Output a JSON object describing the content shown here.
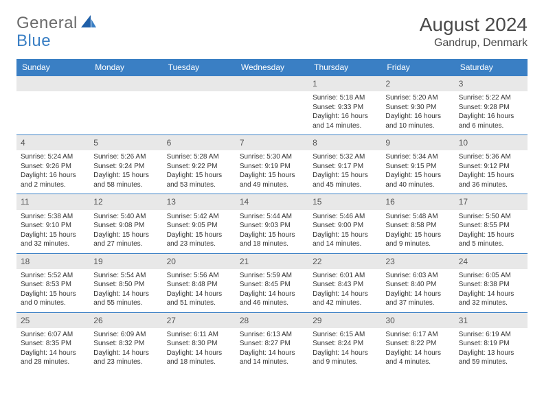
{
  "logo": {
    "part1": "General",
    "part2": "Blue"
  },
  "title": "August 2024",
  "location": "Gandrup, Denmark",
  "colors": {
    "header_bg": "#3a7fc4",
    "header_fg": "#ffffff",
    "daynum_bg": "#e8e8e8",
    "row_border": "#3a7fc4",
    "logo_gray": "#6b6b6b",
    "logo_blue": "#3a7fc4"
  },
  "day_headers": [
    "Sunday",
    "Monday",
    "Tuesday",
    "Wednesday",
    "Thursday",
    "Friday",
    "Saturday"
  ],
  "weeks": [
    [
      {
        "n": "",
        "sunrise": "",
        "sunset": "",
        "daylight": ""
      },
      {
        "n": "",
        "sunrise": "",
        "sunset": "",
        "daylight": ""
      },
      {
        "n": "",
        "sunrise": "",
        "sunset": "",
        "daylight": ""
      },
      {
        "n": "",
        "sunrise": "",
        "sunset": "",
        "daylight": ""
      },
      {
        "n": "1",
        "sunrise": "Sunrise: 5:18 AM",
        "sunset": "Sunset: 9:33 PM",
        "daylight": "Daylight: 16 hours and 14 minutes."
      },
      {
        "n": "2",
        "sunrise": "Sunrise: 5:20 AM",
        "sunset": "Sunset: 9:30 PM",
        "daylight": "Daylight: 16 hours and 10 minutes."
      },
      {
        "n": "3",
        "sunrise": "Sunrise: 5:22 AM",
        "sunset": "Sunset: 9:28 PM",
        "daylight": "Daylight: 16 hours and 6 minutes."
      }
    ],
    [
      {
        "n": "4",
        "sunrise": "Sunrise: 5:24 AM",
        "sunset": "Sunset: 9:26 PM",
        "daylight": "Daylight: 16 hours and 2 minutes."
      },
      {
        "n": "5",
        "sunrise": "Sunrise: 5:26 AM",
        "sunset": "Sunset: 9:24 PM",
        "daylight": "Daylight: 15 hours and 58 minutes."
      },
      {
        "n": "6",
        "sunrise": "Sunrise: 5:28 AM",
        "sunset": "Sunset: 9:22 PM",
        "daylight": "Daylight: 15 hours and 53 minutes."
      },
      {
        "n": "7",
        "sunrise": "Sunrise: 5:30 AM",
        "sunset": "Sunset: 9:19 PM",
        "daylight": "Daylight: 15 hours and 49 minutes."
      },
      {
        "n": "8",
        "sunrise": "Sunrise: 5:32 AM",
        "sunset": "Sunset: 9:17 PM",
        "daylight": "Daylight: 15 hours and 45 minutes."
      },
      {
        "n": "9",
        "sunrise": "Sunrise: 5:34 AM",
        "sunset": "Sunset: 9:15 PM",
        "daylight": "Daylight: 15 hours and 40 minutes."
      },
      {
        "n": "10",
        "sunrise": "Sunrise: 5:36 AM",
        "sunset": "Sunset: 9:12 PM",
        "daylight": "Daylight: 15 hours and 36 minutes."
      }
    ],
    [
      {
        "n": "11",
        "sunrise": "Sunrise: 5:38 AM",
        "sunset": "Sunset: 9:10 PM",
        "daylight": "Daylight: 15 hours and 32 minutes."
      },
      {
        "n": "12",
        "sunrise": "Sunrise: 5:40 AM",
        "sunset": "Sunset: 9:08 PM",
        "daylight": "Daylight: 15 hours and 27 minutes."
      },
      {
        "n": "13",
        "sunrise": "Sunrise: 5:42 AM",
        "sunset": "Sunset: 9:05 PM",
        "daylight": "Daylight: 15 hours and 23 minutes."
      },
      {
        "n": "14",
        "sunrise": "Sunrise: 5:44 AM",
        "sunset": "Sunset: 9:03 PM",
        "daylight": "Daylight: 15 hours and 18 minutes."
      },
      {
        "n": "15",
        "sunrise": "Sunrise: 5:46 AM",
        "sunset": "Sunset: 9:00 PM",
        "daylight": "Daylight: 15 hours and 14 minutes."
      },
      {
        "n": "16",
        "sunrise": "Sunrise: 5:48 AM",
        "sunset": "Sunset: 8:58 PM",
        "daylight": "Daylight: 15 hours and 9 minutes."
      },
      {
        "n": "17",
        "sunrise": "Sunrise: 5:50 AM",
        "sunset": "Sunset: 8:55 PM",
        "daylight": "Daylight: 15 hours and 5 minutes."
      }
    ],
    [
      {
        "n": "18",
        "sunrise": "Sunrise: 5:52 AM",
        "sunset": "Sunset: 8:53 PM",
        "daylight": "Daylight: 15 hours and 0 minutes."
      },
      {
        "n": "19",
        "sunrise": "Sunrise: 5:54 AM",
        "sunset": "Sunset: 8:50 PM",
        "daylight": "Daylight: 14 hours and 55 minutes."
      },
      {
        "n": "20",
        "sunrise": "Sunrise: 5:56 AM",
        "sunset": "Sunset: 8:48 PM",
        "daylight": "Daylight: 14 hours and 51 minutes."
      },
      {
        "n": "21",
        "sunrise": "Sunrise: 5:59 AM",
        "sunset": "Sunset: 8:45 PM",
        "daylight": "Daylight: 14 hours and 46 minutes."
      },
      {
        "n": "22",
        "sunrise": "Sunrise: 6:01 AM",
        "sunset": "Sunset: 8:43 PM",
        "daylight": "Daylight: 14 hours and 42 minutes."
      },
      {
        "n": "23",
        "sunrise": "Sunrise: 6:03 AM",
        "sunset": "Sunset: 8:40 PM",
        "daylight": "Daylight: 14 hours and 37 minutes."
      },
      {
        "n": "24",
        "sunrise": "Sunrise: 6:05 AM",
        "sunset": "Sunset: 8:38 PM",
        "daylight": "Daylight: 14 hours and 32 minutes."
      }
    ],
    [
      {
        "n": "25",
        "sunrise": "Sunrise: 6:07 AM",
        "sunset": "Sunset: 8:35 PM",
        "daylight": "Daylight: 14 hours and 28 minutes."
      },
      {
        "n": "26",
        "sunrise": "Sunrise: 6:09 AM",
        "sunset": "Sunset: 8:32 PM",
        "daylight": "Daylight: 14 hours and 23 minutes."
      },
      {
        "n": "27",
        "sunrise": "Sunrise: 6:11 AM",
        "sunset": "Sunset: 8:30 PM",
        "daylight": "Daylight: 14 hours and 18 minutes."
      },
      {
        "n": "28",
        "sunrise": "Sunrise: 6:13 AM",
        "sunset": "Sunset: 8:27 PM",
        "daylight": "Daylight: 14 hours and 14 minutes."
      },
      {
        "n": "29",
        "sunrise": "Sunrise: 6:15 AM",
        "sunset": "Sunset: 8:24 PM",
        "daylight": "Daylight: 14 hours and 9 minutes."
      },
      {
        "n": "30",
        "sunrise": "Sunrise: 6:17 AM",
        "sunset": "Sunset: 8:22 PM",
        "daylight": "Daylight: 14 hours and 4 minutes."
      },
      {
        "n": "31",
        "sunrise": "Sunrise: 6:19 AM",
        "sunset": "Sunset: 8:19 PM",
        "daylight": "Daylight: 13 hours and 59 minutes."
      }
    ]
  ]
}
